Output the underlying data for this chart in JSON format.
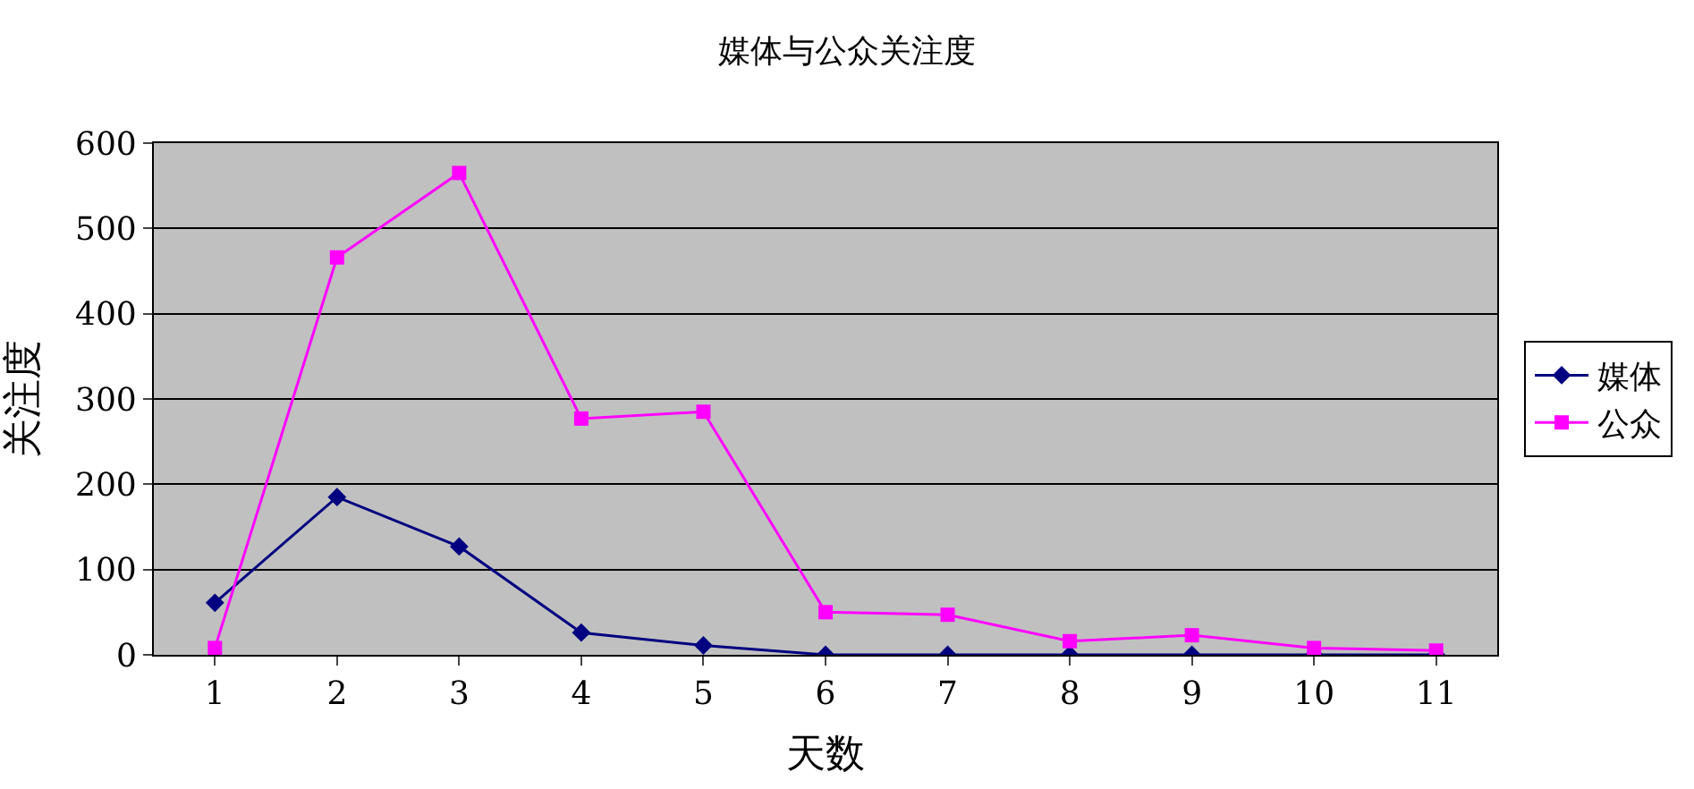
{
  "chart_data": {
    "type": "line",
    "title": "媒体与公众关注度",
    "xlabel": "天数",
    "ylabel": "关注度",
    "categories": [
      "1",
      "2",
      "3",
      "4",
      "5",
      "6",
      "7",
      "8",
      "9",
      "10",
      "11"
    ],
    "series": [
      {
        "name": "媒体",
        "color": "#000080",
        "marker": "diamond",
        "values": [
          61,
          185,
          127,
          26,
          11,
          0,
          0,
          0,
          0,
          0,
          0
        ]
      },
      {
        "name": "公众",
        "color": "#ff00ff",
        "marker": "square",
        "values": [
          8,
          466,
          565,
          277,
          285,
          50,
          47,
          16,
          23,
          8,
          5
        ]
      }
    ],
    "ylim": [
      0,
      600
    ],
    "yticks": [
      0,
      100,
      200,
      300,
      400,
      500,
      600
    ],
    "grid": "y",
    "legend": "right",
    "line_style": "solid"
  }
}
